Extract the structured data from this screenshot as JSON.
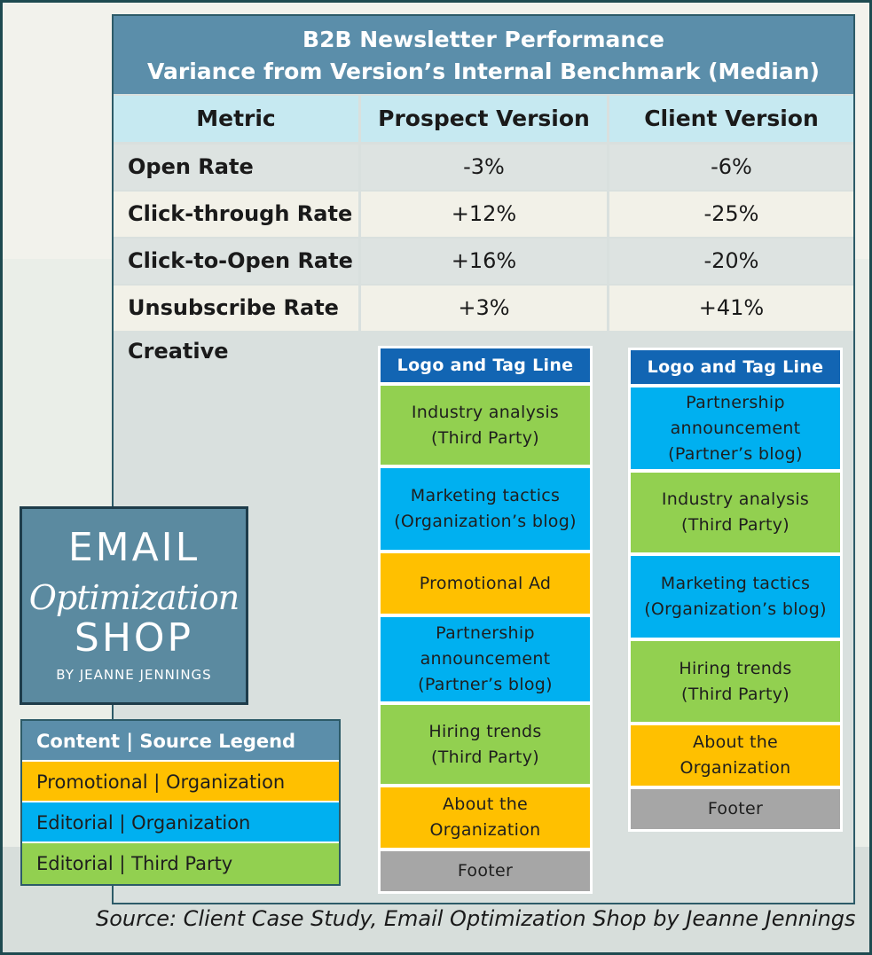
{
  "title": {
    "line1": "B2B Newsletter Performance",
    "line2": "Variance from Version’s Internal Benchmark (Median)"
  },
  "headers": [
    "Metric",
    "Prospect Version",
    "Client Version"
  ],
  "rows": [
    {
      "metric": "Open Rate",
      "prospect": "-3%",
      "client": "-6%"
    },
    {
      "metric": "Click-through Rate",
      "prospect": "+12%",
      "client": "-25%"
    },
    {
      "metric": "Click-to-Open Rate",
      "prospect": "+16%",
      "client": "-20%"
    },
    {
      "metric": "Unsubscribe Rate",
      "prospect": "+3%",
      "client": "+41%"
    }
  ],
  "creative_label": "Creative",
  "prospect_blocks": [
    {
      "text": "Logo and Tag Line",
      "type": "logo"
    },
    {
      "text": "Industry analysis\n(Third Party)",
      "type": "green"
    },
    {
      "text": "Marketing tactics\n(Organization’s blog)",
      "type": "blue"
    },
    {
      "text": "Promotional Ad",
      "type": "yellow"
    },
    {
      "text": "Partnership\nannouncement\n(Partner’s blog)",
      "type": "blue"
    },
    {
      "text": "Hiring trends\n(Third Party)",
      "type": "green"
    },
    {
      "text": "About the\nOrganization",
      "type": "yellow"
    },
    {
      "text": "Footer",
      "type": "gray"
    }
  ],
  "client_blocks": [
    {
      "text": "Logo and Tag Line",
      "type": "logo"
    },
    {
      "text": "Partnership\nannouncement\n(Partner’s blog)",
      "type": "blue"
    },
    {
      "text": "Industry analysis\n(Third Party)",
      "type": "green"
    },
    {
      "text": "Marketing tactics\n(Organization’s blog)",
      "type": "blue"
    },
    {
      "text": "Hiring trends\n(Third Party)",
      "type": "green"
    },
    {
      "text": "About the\nOrganization",
      "type": "yellow"
    },
    {
      "text": "Footer",
      "type": "gray"
    }
  ],
  "logo": {
    "line1": "EMAIL",
    "line2": "Optimization",
    "line3": "SHOP",
    "line4": "BY JEANNE JENNINGS"
  },
  "legend": {
    "title": "Content | Source Legend",
    "items": [
      {
        "label": "Promotional | Organization",
        "color": "yellow"
      },
      {
        "label": "Editorial | Organization",
        "color": "blue"
      },
      {
        "label": "Editorial | Third Party",
        "color": "green"
      }
    ]
  },
  "source": "Source: Client Case Study, Email Optimization Shop by Jeanne Jennings",
  "colors": {
    "title_bg": "#5b8eaa",
    "header_bg": "#c6e9f1",
    "row_alt_a": "#dde3e1",
    "row_alt_b": "#f2f1e8",
    "logo_block": "#1265b3",
    "green": "#92d050",
    "blue": "#00b0f0",
    "yellow": "#ffc000",
    "gray": "#a6a6a6"
  }
}
